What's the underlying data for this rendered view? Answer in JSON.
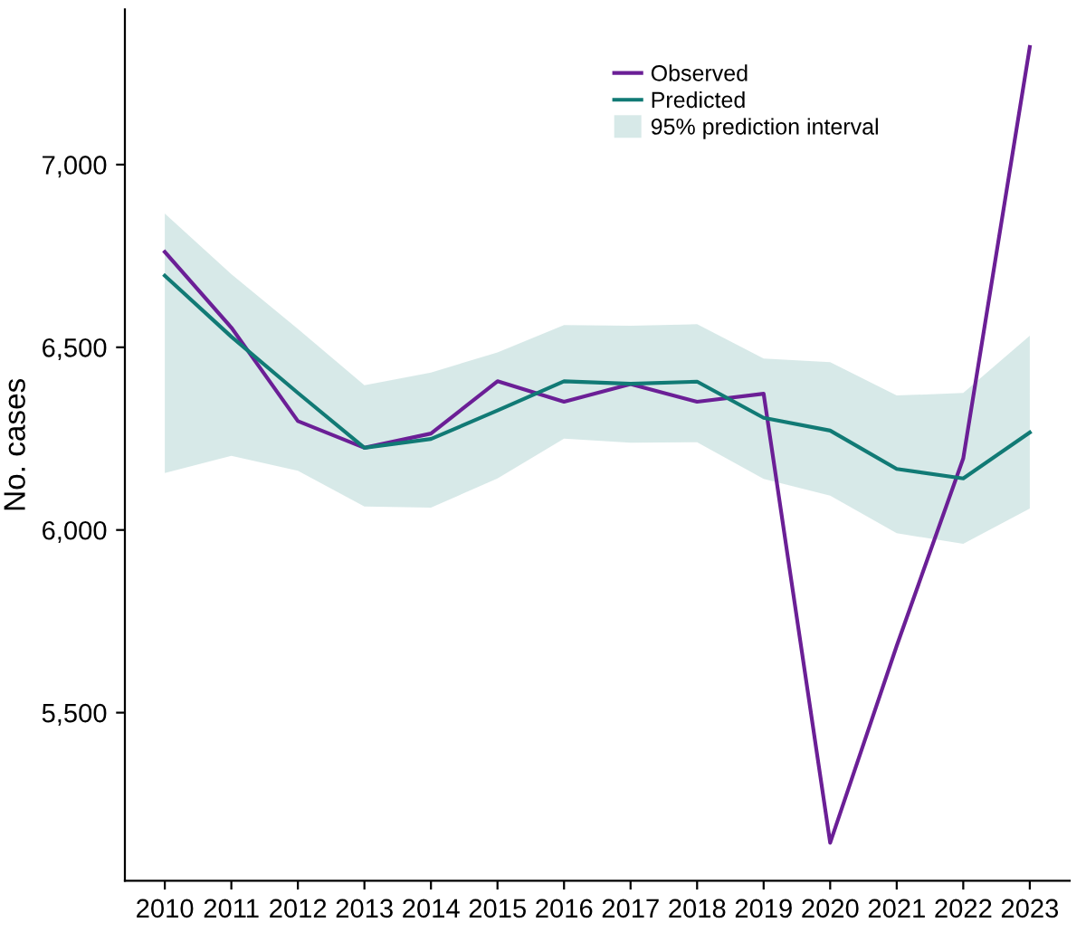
{
  "chart_data": {
    "type": "line",
    "ylabel": "No. cases",
    "categories": [
      "2010",
      "2011",
      "2012",
      "2013",
      "2014",
      "2015",
      "2016",
      "2017",
      "2018",
      "2019",
      "2020",
      "2021",
      "2022",
      "2023"
    ],
    "ylim": [
      5040,
      7425
    ],
    "yticks": [
      {
        "value": 5500,
        "label": "5,500"
      },
      {
        "value": 6000,
        "label": "6,000"
      },
      {
        "value": 6500,
        "label": "6,500"
      },
      {
        "value": 7000,
        "label": "7,000"
      }
    ],
    "grid": false,
    "legend": "top right",
    "annotations": [
      "95% prediction interval"
    ],
    "series": [
      {
        "name": "Observed",
        "color": "#6b1f96",
        "values": [
          6761,
          6554,
          6298,
          6225,
          6264,
          6407,
          6351,
          6399,
          6351,
          6373,
          5144,
          5683,
          6196,
          7322
        ]
      },
      {
        "name": "Predicted",
        "color": "#117a75",
        "values": [
          6696,
          6529,
          6375,
          6225,
          6249,
          6327,
          6407,
          6400,
          6406,
          6307,
          6272,
          6167,
          6141,
          6267
        ],
        "lower": [
          6156,
          6203,
          6162,
          6064,
          6061,
          6141,
          6250,
          6239,
          6240,
          6140,
          6094,
          5991,
          5962,
          6059
        ],
        "upper": [
          6866,
          6700,
          6550,
          6396,
          6431,
          6486,
          6561,
          6559,
          6563,
          6469,
          6459,
          6368,
          6375,
          6532
        ]
      }
    ]
  }
}
